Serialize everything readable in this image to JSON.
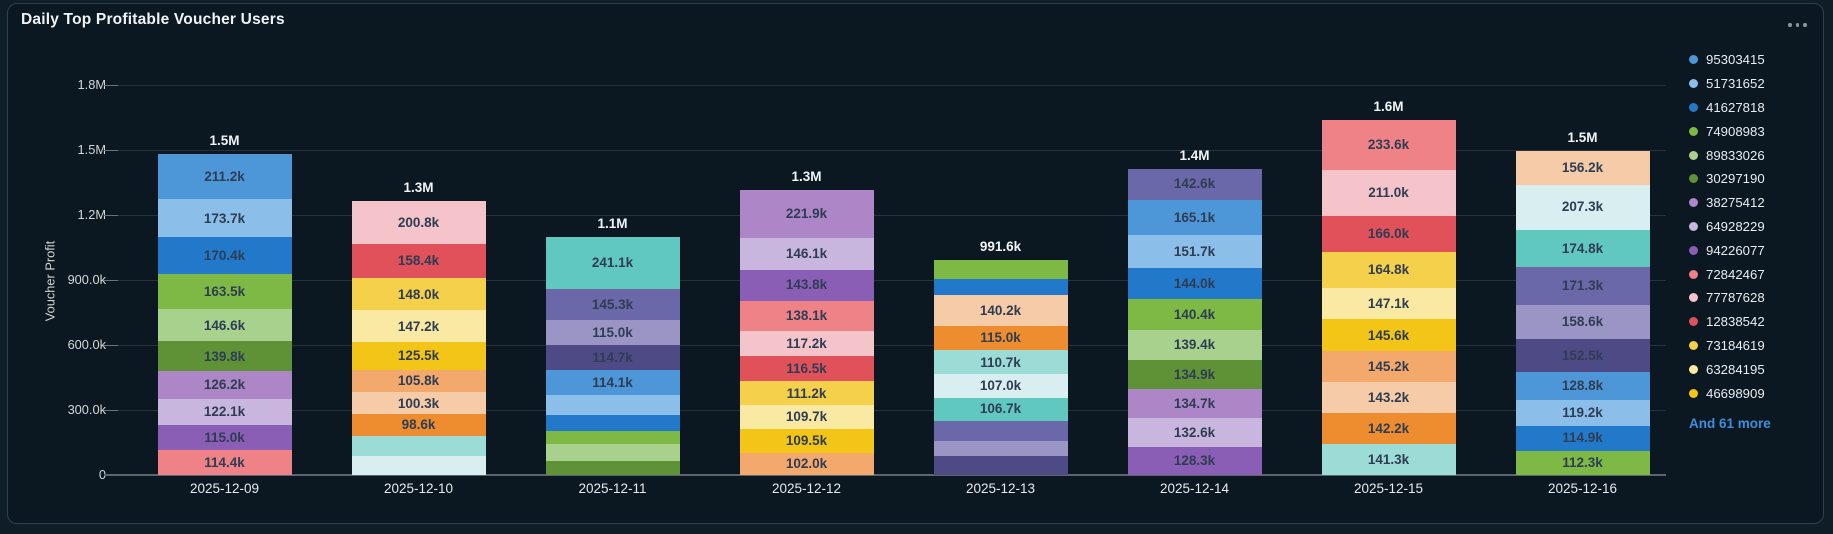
{
  "panel": {
    "title": "Daily Top Profitable Voucher Users",
    "menu_icon": "ellipsis-horizontal-icon"
  },
  "legend": {
    "items": [
      {
        "label": "95303415",
        "color": "#4d96d8"
      },
      {
        "label": "51731652",
        "color": "#8bbfe9"
      },
      {
        "label": "41627818",
        "color": "#2279c9"
      },
      {
        "label": "74908983",
        "color": "#7eb845"
      },
      {
        "label": "89833026",
        "color": "#a9d18e"
      },
      {
        "label": "30297190",
        "color": "#5f9137"
      },
      {
        "label": "38275412",
        "color": "#ac86c6"
      },
      {
        "label": "64928229",
        "color": "#c9b6de"
      },
      {
        "label": "94226077",
        "color": "#8a5eb5"
      },
      {
        "label": "72842467",
        "color": "#ee8287"
      },
      {
        "label": "77787628",
        "color": "#f4c4ca"
      },
      {
        "label": "12838542",
        "color": "#e0515a"
      },
      {
        "label": "73184619",
        "color": "#f5d04b"
      },
      {
        "label": "63284195",
        "color": "#f9e9a3"
      },
      {
        "label": "46698909",
        "color": "#f3c517"
      }
    ],
    "more_label": "And 61 more"
  },
  "chart_data": {
    "type": "bar",
    "stacked": true,
    "title": "Daily Top Profitable Voucher Users",
    "xlabel": "",
    "ylabel": "Voucher Profit",
    "ylim": [
      0,
      1800000
    ],
    "grid": true,
    "legend_position": "right",
    "yticks": [
      {
        "label": "1.8M",
        "value": 1800000
      },
      {
        "label": "1.5M",
        "value": 1500000
      },
      {
        "label": "1.2M",
        "value": 1200000
      },
      {
        "label": "900.0k",
        "value": 900000
      },
      {
        "label": "600.0k",
        "value": 600000
      },
      {
        "label": "300.0k",
        "value": 300000
      },
      {
        "label": "0",
        "value": 0
      }
    ],
    "categories": [
      "2025-12-09",
      "2025-12-10",
      "2025-12-11",
      "2025-12-12",
      "2025-12-13",
      "2025-12-14",
      "2025-12-15",
      "2025-12-16"
    ],
    "totals": [
      "1.5M",
      "1.3M",
      "1.1M",
      "1.3M",
      "991.6k",
      "1.4M",
      "1.6M",
      "1.5M"
    ],
    "bars": [
      {
        "category": "2025-12-09",
        "total_label": "1.5M",
        "segments": [
          {
            "value_k": 211.2,
            "label": "211.2k",
            "color": "#4d96d8"
          },
          {
            "value_k": 173.7,
            "label": "173.7k",
            "color": "#8bbfe9"
          },
          {
            "value_k": 170.4,
            "label": "170.4k",
            "color": "#2279c9"
          },
          {
            "value_k": 163.5,
            "label": "163.5k",
            "color": "#7eb845"
          },
          {
            "value_k": 146.6,
            "label": "146.6k",
            "color": "#a9d18e"
          },
          {
            "value_k": 139.8,
            "label": "139.8k",
            "color": "#5f9137"
          },
          {
            "value_k": 126.2,
            "label": "126.2k",
            "color": "#ac86c6"
          },
          {
            "value_k": 122.1,
            "label": "122.1k",
            "color": "#c9b6de"
          },
          {
            "value_k": 115.0,
            "label": "115.0k",
            "color": "#8a5eb5"
          },
          {
            "value_k": 114.4,
            "label": "114.4k",
            "color": "#ee8287"
          }
        ]
      },
      {
        "category": "2025-12-10",
        "total_label": "1.3M",
        "segments": [
          {
            "value_k": 200.8,
            "label": "200.8k",
            "color": "#f4c4ca"
          },
          {
            "value_k": 158.4,
            "label": "158.4k",
            "color": "#e0515a"
          },
          {
            "value_k": 148.0,
            "label": "148.0k",
            "color": "#f5d04b"
          },
          {
            "value_k": 147.2,
            "label": "147.2k",
            "color": "#f9e9a3"
          },
          {
            "value_k": 125.5,
            "label": "125.5k",
            "color": "#f3c517"
          },
          {
            "value_k": 105.8,
            "label": "105.8k",
            "color": "#f3a96b"
          },
          {
            "value_k": 100.3,
            "label": "100.3k",
            "color": "#f6cba7"
          },
          {
            "value_k": 98.6,
            "label": "98.6k",
            "color": "#ee8d2f"
          },
          {
            "value_k": 95.0,
            "label": null,
            "color": "#9cdcd7"
          },
          {
            "value_k": 87.0,
            "label": null,
            "color": "#d9eef0"
          }
        ]
      },
      {
        "category": "2025-12-11",
        "total_label": "1.1M",
        "segments": [
          {
            "value_k": 241.1,
            "label": "241.1k",
            "color": "#61c8c0"
          },
          {
            "value_k": 145.3,
            "label": "145.3k",
            "color": "#6a68a8"
          },
          {
            "value_k": 115.0,
            "label": "115.0k",
            "color": "#9b95c5"
          },
          {
            "value_k": 114.7,
            "label": "114.7k",
            "color": "#4e4a85"
          },
          {
            "value_k": 114.1,
            "label": "114.1k",
            "color": "#4d96d8"
          },
          {
            "value_k": 92.0,
            "label": null,
            "color": "#8bbfe9"
          },
          {
            "value_k": 77.0,
            "label": null,
            "color": "#2279c9"
          },
          {
            "value_k": 58.0,
            "label": null,
            "color": "#7eb845"
          },
          {
            "value_k": 79.0,
            "label": null,
            "color": "#a9d18e"
          },
          {
            "value_k": 63.8,
            "label": null,
            "color": "#5f9137"
          }
        ]
      },
      {
        "category": "2025-12-12",
        "total_label": "1.3M",
        "segments": [
          {
            "value_k": 221.9,
            "label": "221.9k",
            "color": "#ac86c6"
          },
          {
            "value_k": 146.1,
            "label": "146.1k",
            "color": "#c9b6de"
          },
          {
            "value_k": 143.8,
            "label": "143.8k",
            "color": "#8a5eb5"
          },
          {
            "value_k": 138.1,
            "label": "138.1k",
            "color": "#ee8287"
          },
          {
            "value_k": 117.2,
            "label": "117.2k",
            "color": "#f4c4ca"
          },
          {
            "value_k": 116.5,
            "label": "116.5k",
            "color": "#e0515a"
          },
          {
            "value_k": 111.2,
            "label": "111.2k",
            "color": "#f5d04b"
          },
          {
            "value_k": 109.7,
            "label": "109.7k",
            "color": "#f9e9a3"
          },
          {
            "value_k": 109.5,
            "label": "109.5k",
            "color": "#f3c517"
          },
          {
            "value_k": 102.0,
            "label": "102.0k",
            "color": "#f3a96b"
          }
        ]
      },
      {
        "category": "2025-12-13",
        "total_label": "991.6k",
        "segments": [
          {
            "value_k": 87.0,
            "label": null,
            "color": "#7eb845"
          },
          {
            "value_k": 74.7,
            "label": null,
            "color": "#2279c9"
          },
          {
            "value_k": 140.2,
            "label": "140.2k",
            "color": "#f6cba7"
          },
          {
            "value_k": 115.0,
            "label": "115.0k",
            "color": "#ee8d2f"
          },
          {
            "value_k": 110.7,
            "label": "110.7k",
            "color": "#9cdcd7"
          },
          {
            "value_k": 107.0,
            "label": "107.0k",
            "color": "#d9eef0"
          },
          {
            "value_k": 106.7,
            "label": "106.7k",
            "color": "#61c8c0"
          },
          {
            "value_k": 92.7,
            "label": null,
            "color": "#6a68a8"
          },
          {
            "value_k": 69.5,
            "label": null,
            "color": "#9b95c5"
          },
          {
            "value_k": 88.1,
            "label": null,
            "color": "#4e4a85"
          }
        ]
      },
      {
        "category": "2025-12-14",
        "total_label": "1.4M",
        "segments": [
          {
            "value_k": 142.6,
            "label": "142.6k",
            "color": "#6a68a8"
          },
          {
            "value_k": 165.1,
            "label": "165.1k",
            "color": "#4d96d8"
          },
          {
            "value_k": 151.7,
            "label": "151.7k",
            "color": "#8bbfe9"
          },
          {
            "value_k": 144.0,
            "label": "144.0k",
            "color": "#2279c9"
          },
          {
            "value_k": 140.4,
            "label": "140.4k",
            "color": "#7eb845"
          },
          {
            "value_k": 139.4,
            "label": "139.4k",
            "color": "#a9d18e"
          },
          {
            "value_k": 134.9,
            "label": "134.9k",
            "color": "#5f9137"
          },
          {
            "value_k": 134.7,
            "label": "134.7k",
            "color": "#ac86c6"
          },
          {
            "value_k": 132.6,
            "label": "132.6k",
            "color": "#c9b6de"
          },
          {
            "value_k": 128.3,
            "label": "128.3k",
            "color": "#8a5eb5"
          }
        ]
      },
      {
        "category": "2025-12-15",
        "total_label": "1.6M",
        "segments": [
          {
            "value_k": 233.6,
            "label": "233.6k",
            "color": "#ee8287"
          },
          {
            "value_k": 211.0,
            "label": "211.0k",
            "color": "#f4c4ca"
          },
          {
            "value_k": 166.0,
            "label": "166.0k",
            "color": "#e0515a"
          },
          {
            "value_k": 164.8,
            "label": "164.8k",
            "color": "#f5d04b"
          },
          {
            "value_k": 147.1,
            "label": "147.1k",
            "color": "#f9e9a3"
          },
          {
            "value_k": 145.6,
            "label": "145.6k",
            "color": "#f3c517"
          },
          {
            "value_k": 145.2,
            "label": "145.2k",
            "color": "#f3a96b"
          },
          {
            "value_k": 143.2,
            "label": "143.2k",
            "color": "#f6cba7"
          },
          {
            "value_k": 142.2,
            "label": "142.2k",
            "color": "#ee8d2f"
          },
          {
            "value_k": 141.3,
            "label": "141.3k",
            "color": "#9cdcd7"
          }
        ]
      },
      {
        "category": "2025-12-16",
        "total_label": "1.5M",
        "segments": [
          {
            "value_k": 156.2,
            "label": "156.2k",
            "color": "#f6cba7"
          },
          {
            "value_k": 207.3,
            "label": "207.3k",
            "color": "#d9eef0"
          },
          {
            "value_k": 174.8,
            "label": "174.8k",
            "color": "#61c8c0"
          },
          {
            "value_k": 171.3,
            "label": "171.3k",
            "color": "#6a68a8"
          },
          {
            "value_k": 158.6,
            "label": "158.6k",
            "color": "#9b95c5"
          },
          {
            "value_k": 152.5,
            "label": "152.5k",
            "color": "#4e4a85"
          },
          {
            "value_k": 128.8,
            "label": "128.8k",
            "color": "#4d96d8"
          },
          {
            "value_k": 119.2,
            "label": "119.2k",
            "color": "#8bbfe9"
          },
          {
            "value_k": 114.9,
            "label": "114.9k",
            "color": "#2279c9"
          },
          {
            "value_k": 112.3,
            "label": "112.3k",
            "color": "#7eb845"
          }
        ]
      }
    ]
  }
}
